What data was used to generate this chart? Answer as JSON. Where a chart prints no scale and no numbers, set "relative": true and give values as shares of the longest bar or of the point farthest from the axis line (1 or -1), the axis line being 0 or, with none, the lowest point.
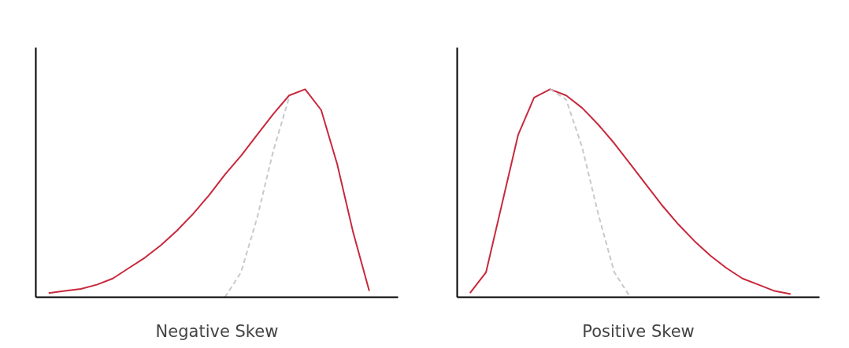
{
  "chart_data": [
    {
      "type": "line",
      "relative": true,
      "xlabel": "Negative Skew",
      "grid": false,
      "categories": [
        null,
        null,
        null,
        null,
        null,
        null,
        null,
        null,
        null,
        null,
        null,
        null,
        null,
        null,
        null,
        null,
        null,
        null,
        null,
        null,
        null,
        null
      ],
      "series": [
        {
          "color": "#c8283c",
          "line_style": "solid",
          "values": [
            0.02,
            0.03,
            0.04,
            0.06,
            0.09,
            0.14,
            0.19,
            0.25,
            0.32,
            0.4,
            0.49,
            0.59,
            0.68,
            0.78,
            0.88,
            0.97,
            1.0,
            0.9,
            0.64,
            0.31,
            0.03,
            null
          ]
        },
        {
          "color": "#c8c8d0",
          "line_style": "dashed",
          "values": [
            null,
            null,
            null,
            null,
            null,
            null,
            null,
            null,
            null,
            null,
            null,
            0.0,
            0.12,
            0.38,
            0.7,
            0.96,
            null,
            null,
            null,
            null,
            null,
            null
          ]
        }
      ]
    },
    {
      "type": "line",
      "relative": true,
      "xlabel": "Positive Skew",
      "grid": false,
      "categories": [
        null,
        null,
        null,
        null,
        null,
        null,
        null,
        null,
        null,
        null,
        null,
        null,
        null,
        null,
        null,
        null,
        null,
        null,
        null,
        null,
        null,
        null
      ],
      "series": [
        {
          "color": "#c8283c",
          "line_style": "solid",
          "values": [
            0.02,
            0.12,
            0.45,
            0.78,
            0.96,
            1.0,
            0.97,
            0.91,
            0.83,
            0.74,
            0.64,
            0.54,
            0.44,
            0.35,
            0.27,
            0.2,
            0.14,
            0.09,
            0.06,
            0.03,
            0.015,
            null
          ]
        },
        {
          "color": "#c8c8d0",
          "line_style": "dashed",
          "values": [
            null,
            null,
            null,
            null,
            null,
            1.0,
            0.95,
            0.72,
            0.4,
            0.12,
            0.0,
            null,
            null,
            null,
            null,
            null,
            null,
            null,
            null,
            null,
            null,
            null
          ]
        }
      ]
    }
  ]
}
